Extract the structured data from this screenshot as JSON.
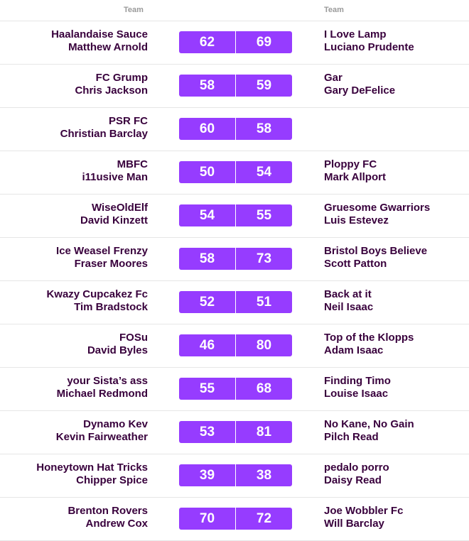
{
  "header": {
    "home_label": "Team",
    "away_label": "Team"
  },
  "fixtures": [
    {
      "home_team": "Haalandaise Sauce",
      "home_manager": "Matthew Arnold",
      "home_score": "62",
      "away_score": "69",
      "away_team": "I Love Lamp",
      "away_manager": "Luciano Prudente"
    },
    {
      "home_team": "FC Grump",
      "home_manager": "Chris Jackson",
      "home_score": "58",
      "away_score": "59",
      "away_team": "Gar",
      "away_manager": "Gary DeFelice"
    },
    {
      "home_team": "PSR FC",
      "home_manager": "Christian Barclay",
      "home_score": "60",
      "away_score": "58",
      "away_team": "",
      "away_manager": ""
    },
    {
      "home_team": "MBFC",
      "home_manager": "i11usive Man",
      "home_score": "50",
      "away_score": "54",
      "away_team": "Ploppy FC",
      "away_manager": "Mark Allport"
    },
    {
      "home_team": "WiseOldElf",
      "home_manager": "David Kinzett",
      "home_score": "54",
      "away_score": "55",
      "away_team": "Gruesome Gwarriors",
      "away_manager": "Luis Estevez"
    },
    {
      "home_team": "Ice Weasel Frenzy",
      "home_manager": "Fraser Moores",
      "home_score": "58",
      "away_score": "73",
      "away_team": "Bristol Boys Believe",
      "away_manager": "Scott Patton"
    },
    {
      "home_team": "Kwazy Cupcakez Fc",
      "home_manager": "Tim Bradstock",
      "home_score": "52",
      "away_score": "51",
      "away_team": "Back at it",
      "away_manager": "Neil Isaac"
    },
    {
      "home_team": "FOSu",
      "home_manager": "David Byles",
      "home_score": "46",
      "away_score": "80",
      "away_team": "Top of the Klopps",
      "away_manager": "Adam Isaac"
    },
    {
      "home_team": "your Sista’s ass",
      "home_manager": "Michael Redmond",
      "home_score": "55",
      "away_score": "68",
      "away_team": "Finding Timo",
      "away_manager": "Louise Isaac"
    },
    {
      "home_team": "Dynamo Kev",
      "home_manager": "Kevin Fairweather",
      "home_score": "53",
      "away_score": "81",
      "away_team": "No Kane, No Gain",
      "away_manager": "Pilch Read"
    },
    {
      "home_team": "Honeytown Hat Tricks",
      "home_manager": "Chipper Spice",
      "home_score": "39",
      "away_score": "38",
      "away_team": "pedalo porro",
      "away_manager": "Daisy Read"
    },
    {
      "home_team": "Brenton Rovers",
      "home_manager": "Andrew Cox",
      "home_score": "70",
      "away_score": "72",
      "away_team": "Joe Wobbler Fc",
      "away_manager": "Will Barclay"
    }
  ],
  "colors": {
    "score_bg": "#963cff",
    "text": "#38003c",
    "header_text": "#9a9a9a"
  }
}
